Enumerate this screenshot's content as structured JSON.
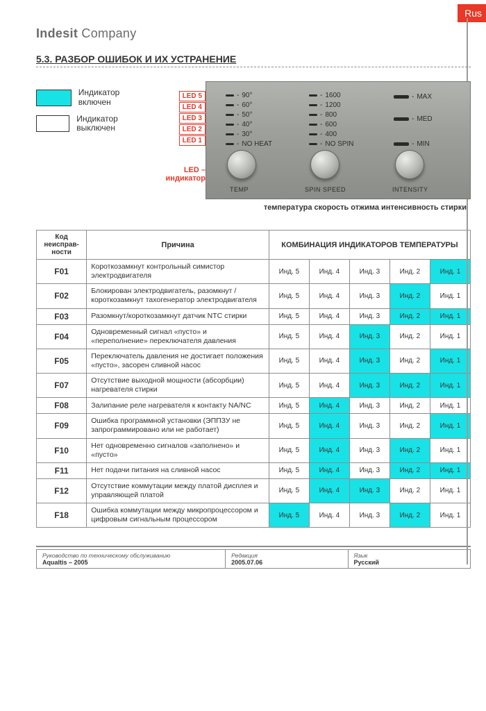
{
  "tab": "Rus",
  "company_bold": "Indesit",
  "company_light": " Company",
  "section": "5.3.  РАЗБОР ОШИБОК И ИХ УСТРАНЕНИЕ",
  "legend": {
    "on": "Индикатор включен",
    "off": "Индикатор выключен"
  },
  "colors": {
    "indicator_on": "#19e2e6",
    "indicator_off": "#ffffff",
    "accent_red": "#e73828"
  },
  "leds": [
    "LED 5",
    "LED 4",
    "LED 3",
    "LED 2",
    "LED 1"
  ],
  "led_caption": "LED – индикатор",
  "panel": {
    "temp": [
      "90°",
      "60°",
      "50°",
      "40°",
      "30°",
      "NO HEAT"
    ],
    "spin": [
      "1600",
      "1200",
      "800",
      "600",
      "400",
      "NO SPIN"
    ],
    "intensity": [
      "MAX",
      "MED",
      "MIN"
    ],
    "knobs": [
      "TEMP",
      "SPIN SPEED",
      "INTENSITY"
    ]
  },
  "panel_caption": "температура   скорость отжима   интенсивность стирки",
  "table": {
    "head": {
      "code": "Код неисправ-\nности",
      "cause": "Причина",
      "combo": "КОМБИНАЦИЯ ИНДИКАТОРОВ ТЕМПЕРАТУРЫ"
    },
    "ind_labels": [
      "Инд. 5",
      "Инд. 4",
      "Инд. 3",
      "Инд. 2",
      "Инд. 1"
    ],
    "rows": [
      {
        "code": "F01",
        "cause": "Короткозамкнут контрольный симистор электродвигателя",
        "on": [
          0,
          0,
          0,
          0,
          1
        ]
      },
      {
        "code": "F02",
        "cause": "Блокирован электродвигатель, разомкнут / короткозамкнут тахогенератор электродвигателя",
        "on": [
          0,
          0,
          0,
          1,
          0
        ]
      },
      {
        "code": "F03",
        "cause": "Разомкнут/короткозамкнут датчик NTC стирки",
        "on": [
          0,
          0,
          0,
          1,
          1
        ]
      },
      {
        "code": "F04",
        "cause": "Одновременный сигнал «пусто» и «переполнение» переключателя давления",
        "on": [
          0,
          0,
          1,
          0,
          0
        ]
      },
      {
        "code": "F05",
        "cause": "Переключатель давления не достигает положения «пусто», засорен сливной насос",
        "on": [
          0,
          0,
          1,
          0,
          1
        ]
      },
      {
        "code": "F07",
        "cause": "Отсутствие выходной мощности (абсорбции) нагревателя стирки",
        "on": [
          0,
          0,
          1,
          1,
          1
        ]
      },
      {
        "code": "F08",
        "cause": "Залипание реле нагревателя к контакту NA/NC",
        "on": [
          0,
          1,
          0,
          0,
          0
        ]
      },
      {
        "code": "F09",
        "cause": "Ошибка программной установки (ЭППЗУ не запрограммировано или не работает)",
        "on": [
          0,
          1,
          0,
          0,
          1
        ]
      },
      {
        "code": "F10",
        "cause": "Нет одновременно сигналов «заполнено» и «пусто»",
        "on": [
          0,
          1,
          0,
          1,
          0
        ]
      },
      {
        "code": "F11",
        "cause": "Нет подачи питания на сливной насос",
        "on": [
          0,
          1,
          0,
          1,
          1
        ]
      },
      {
        "code": "F12",
        "cause": "Отсутствие коммутации между платой дисплея и управляющей платой",
        "on": [
          0,
          1,
          1,
          0,
          0
        ]
      },
      {
        "code": "F18",
        "cause": "Ошибка коммутации между микропроцессором и цифровым сигнальным процессором",
        "on": [
          1,
          0,
          0,
          1,
          0
        ]
      }
    ]
  },
  "footer": {
    "c1_lbl": "Руководство по техническому обслуживанию",
    "c1_val": "Aqualtis  –  2005",
    "c2_lbl": "Редакция",
    "c2_val": "2005.07.06",
    "c3_lbl": "Язык",
    "c3_val": "Русский"
  }
}
